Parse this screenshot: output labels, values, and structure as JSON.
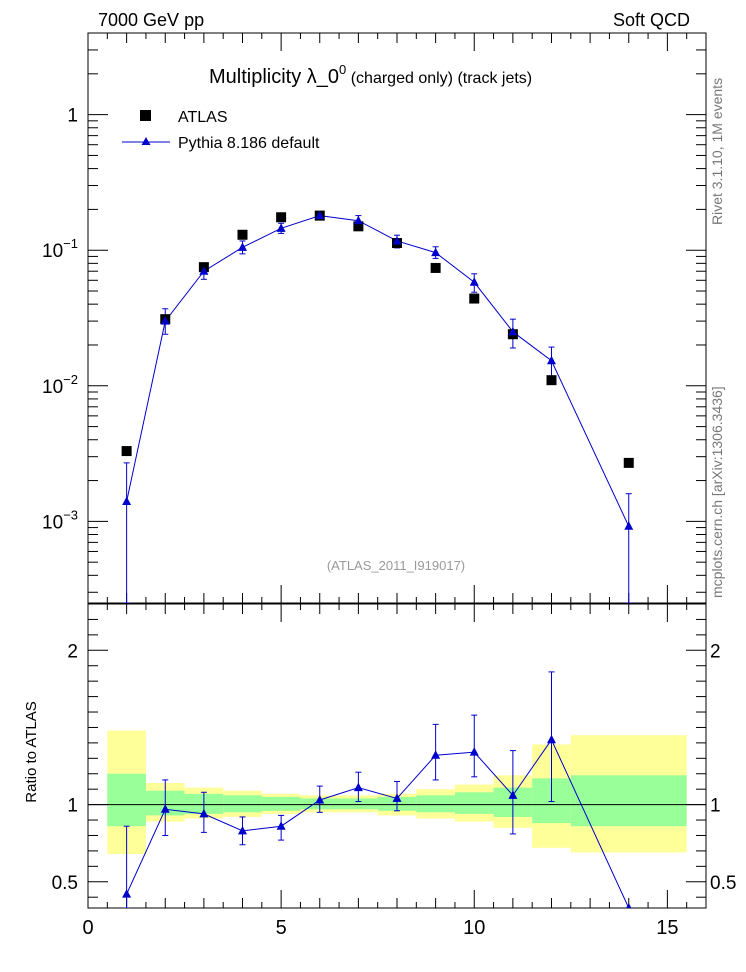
{
  "header": {
    "left": "7000 GeV pp",
    "right": "Soft QCD"
  },
  "title": {
    "main": "Multiplicity  λ_0",
    "superscript": "0",
    "suffix": " (charged only) (track jets)"
  },
  "side_labels": {
    "rivet": "Rivet 3.1.10,  1M events",
    "mcplots": "mcplots.cern.ch [arXiv:1306.3436]"
  },
  "watermark": "(ATLAS_2011_I919017)",
  "legend": {
    "data_label": "ATLAS",
    "mc_label": "Pythia 8.186 default"
  },
  "ratio_ylabel": "Ratio to ATLAS",
  "colors": {
    "mc": "#0000cc",
    "data": "#000000",
    "band_inner": "#99ff99",
    "band_outer": "#ffff99"
  },
  "chart_data": {
    "type": "scatter",
    "main": {
      "yscale": "log",
      "ylim": [
        0.00025,
        4.0
      ],
      "yticks": [
        {
          "v": 0.001,
          "base": "10",
          "exp": "−3"
        },
        {
          "v": 0.01,
          "base": "10",
          "exp": "−2"
        },
        {
          "v": 0.1,
          "base": "10",
          "exp": "−1"
        },
        {
          "v": 1,
          "base": "1",
          "exp": ""
        }
      ]
    },
    "ratio": {
      "ylim": [
        0.33,
        2.3
      ],
      "yticks": [
        "0.5",
        "1",
        "2"
      ]
    },
    "xlim": [
      0,
      16
    ],
    "xticks": [
      "0",
      "5",
      "10",
      "15"
    ],
    "data_series": {
      "name": "ATLAS",
      "x": [
        1,
        2,
        3,
        4,
        5,
        6,
        7,
        8,
        9,
        10,
        11,
        12,
        14
      ],
      "y": [
        0.0033,
        0.031,
        0.075,
        0.13,
        0.175,
        0.18,
        0.15,
        0.113,
        0.074,
        0.044,
        0.024,
        0.011,
        0.0027
      ]
    },
    "mc_series": {
      "name": "Pythia 8.186 default",
      "x": [
        1,
        2,
        3,
        4,
        5,
        6,
        7,
        8,
        9,
        10,
        11,
        12,
        14
      ],
      "y": [
        0.0014,
        0.03,
        0.07,
        0.105,
        0.145,
        0.18,
        0.165,
        0.117,
        0.096,
        0.058,
        0.025,
        0.0153,
        0.00092
      ],
      "err_lo": [
        0.00025,
        0.024,
        0.061,
        0.094,
        0.133,
        0.168,
        0.151,
        0.104,
        0.087,
        0.049,
        0.019,
        0.011,
        0.00025
      ],
      "err_hi": [
        0.0027,
        0.037,
        0.08,
        0.117,
        0.158,
        0.192,
        0.18,
        0.129,
        0.106,
        0.067,
        0.031,
        0.0193,
        0.0016
      ]
    },
    "ratio_series": {
      "x": [
        1,
        2,
        3,
        4,
        5,
        6,
        7,
        8,
        9,
        10,
        11,
        12,
        14
      ],
      "y": [
        0.42,
        0.97,
        0.94,
        0.83,
        0.86,
        1.03,
        1.11,
        1.04,
        1.32,
        1.34,
        1.06,
        1.42,
        0.33
      ],
      "err_lo": [
        0.33,
        0.8,
        0.82,
        0.74,
        0.77,
        0.95,
        1.02,
        0.96,
        1.16,
        1.18,
        0.81,
        1.02,
        0.33
      ],
      "err_hi": [
        0.86,
        1.16,
        1.08,
        0.92,
        0.93,
        1.12,
        1.21,
        1.15,
        1.52,
        1.58,
        1.35,
        1.86,
        0.33
      ]
    },
    "bands": [
      {
        "x0": 0.5,
        "x1": 1.5,
        "in_lo": 0.86,
        "in_hi": 1.2,
        "out_lo": 0.68,
        "out_hi": 1.48
      },
      {
        "x0": 1.5,
        "x1": 2.5,
        "in_lo": 0.93,
        "in_hi": 1.09,
        "out_lo": 0.89,
        "out_hi": 1.14
      },
      {
        "x0": 2.5,
        "x1": 3.5,
        "in_lo": 0.94,
        "in_hi": 1.07,
        "out_lo": 0.91,
        "out_hi": 1.11
      },
      {
        "x0": 3.5,
        "x1": 4.5,
        "in_lo": 0.95,
        "in_hi": 1.06,
        "out_lo": 0.92,
        "out_hi": 1.09
      },
      {
        "x0": 4.5,
        "x1": 5.5,
        "in_lo": 0.96,
        "in_hi": 1.05,
        "out_lo": 0.94,
        "out_hi": 1.07
      },
      {
        "x0": 5.5,
        "x1": 6.5,
        "in_lo": 0.97,
        "in_hi": 1.04,
        "out_lo": 0.95,
        "out_hi": 1.06
      },
      {
        "x0": 6.5,
        "x1": 7.5,
        "in_lo": 0.97,
        "in_hi": 1.04,
        "out_lo": 0.95,
        "out_hi": 1.06
      },
      {
        "x0": 7.5,
        "x1": 8.5,
        "in_lo": 0.96,
        "in_hi": 1.05,
        "out_lo": 0.93,
        "out_hi": 1.07
      },
      {
        "x0": 8.5,
        "x1": 9.5,
        "in_lo": 0.95,
        "in_hi": 1.06,
        "out_lo": 0.91,
        "out_hi": 1.1
      },
      {
        "x0": 9.5,
        "x1": 10.5,
        "in_lo": 0.94,
        "in_hi": 1.08,
        "out_lo": 0.89,
        "out_hi": 1.13
      },
      {
        "x0": 10.5,
        "x1": 11.5,
        "in_lo": 0.92,
        "in_hi": 1.11,
        "out_lo": 0.85,
        "out_hi": 1.19
      },
      {
        "x0": 11.5,
        "x1": 12.5,
        "in_lo": 0.88,
        "in_hi": 1.17,
        "out_lo": 0.72,
        "out_hi": 1.39
      },
      {
        "x0": 12.5,
        "x1": 15.5,
        "in_lo": 0.86,
        "in_hi": 1.19,
        "out_lo": 0.69,
        "out_hi": 1.45
      }
    ]
  }
}
